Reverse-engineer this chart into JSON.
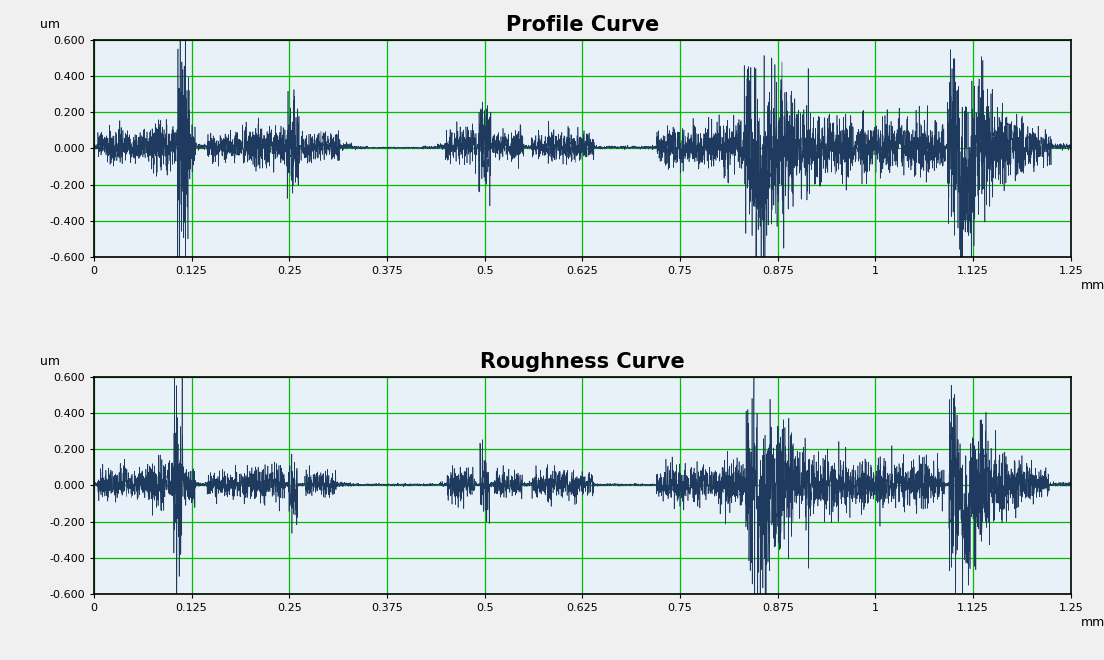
{
  "title1": "Profile Curve",
  "title2": "Roughness Curve",
  "ylabel": "um",
  "xlabel": "mm",
  "xlim": [
    0,
    1.25
  ],
  "ylim": [
    -0.6,
    0.6
  ],
  "yticks": [
    -0.6,
    -0.4,
    -0.2,
    0.0,
    0.2,
    0.4,
    0.6
  ],
  "xticks": [
    0,
    0.125,
    0.25,
    0.375,
    0.5,
    0.625,
    0.75,
    0.875,
    1,
    1.125,
    1.25
  ],
  "grid_color": "#00bb00",
  "line_color": "#1e3a5f",
  "bg_color": "#f0f0f0",
  "plot_bg_color": "#e8f0f8",
  "title_fontsize": 15,
  "title_fontweight": "bold",
  "label_fontsize": 9,
  "tick_fontsize": 8,
  "n_points": 6250,
  "seed": 42
}
